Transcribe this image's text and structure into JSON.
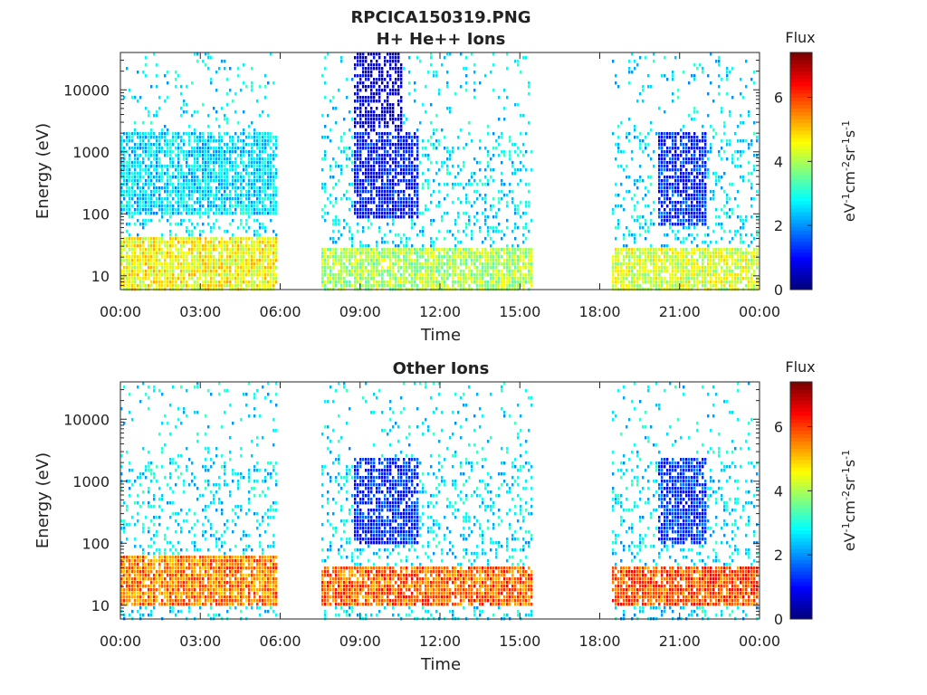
{
  "figure": {
    "title_line1": "RPCICA150319.PNG"
  },
  "chart_data": [
    {
      "type": "heatmap",
      "title": "H+ He++ Ions",
      "xlabel": "Time",
      "ylabel": "Energy (eV)",
      "y_scale": "log",
      "ylim": [
        6,
        40000
      ],
      "y_ticks": [
        "10",
        "100",
        "1000",
        "10000"
      ],
      "x_ticks": [
        "00:00",
        "03:00",
        "06:00",
        "09:00",
        "12:00",
        "15:00",
        "18:00",
        "21:00",
        "00:00"
      ],
      "colorbar": {
        "title": "Flux",
        "label": "eV-1cm-2sr-1s-1",
        "range": [
          0,
          7.4
        ],
        "ticks": [
          "0",
          "2",
          "4",
          "6"
        ]
      },
      "data_gaps_hours": [
        [
          5.9,
          7.5
        ],
        [
          15.5,
          18.5
        ]
      ],
      "data_intervals_hours": [
        [
          0.0,
          5.9
        ],
        [
          7.5,
          15.5
        ],
        [
          18.5,
          24.0
        ]
      ],
      "features": [
        {
          "time_hours": [
            0.0,
            5.9
          ],
          "energy_eV": [
            6,
            40
          ],
          "flux": 4.6
        },
        {
          "time_hours": [
            0.0,
            5.9
          ],
          "energy_eV": [
            100,
            2000
          ],
          "flux": 2.5
        },
        {
          "time_hours": [
            7.5,
            15.5
          ],
          "energy_eV": [
            6,
            30
          ],
          "flux": 4.0
        },
        {
          "time_hours": [
            8.8,
            11.2
          ],
          "energy_eV": [
            80,
            2000
          ],
          "flux": 1.0
        },
        {
          "time_hours": [
            8.8,
            10.6
          ],
          "energy_eV": [
            2000,
            40000
          ],
          "flux": 0.5
        },
        {
          "time_hours": [
            18.5,
            24.0
          ],
          "energy_eV": [
            6,
            30
          ],
          "flux": 4.3
        },
        {
          "time_hours": [
            20.2,
            22.0
          ],
          "energy_eV": [
            60,
            2000
          ],
          "flux": 1.2
        }
      ]
    },
    {
      "type": "heatmap",
      "title": "Other Ions",
      "xlabel": "Time",
      "ylabel": "Energy (eV)",
      "y_scale": "log",
      "ylim": [
        6,
        40000
      ],
      "y_ticks": [
        "10",
        "100",
        "1000",
        "10000"
      ],
      "x_ticks": [
        "00:00",
        "03:00",
        "06:00",
        "09:00",
        "12:00",
        "15:00",
        "18:00",
        "21:00",
        "00:00"
      ],
      "colorbar": {
        "title": "Flux",
        "label": "eV-1cm-2sr-1s-1",
        "range": [
          0,
          7.4
        ],
        "ticks": [
          "0",
          "2",
          "4",
          "6"
        ]
      },
      "data_gaps_hours": [
        [
          5.9,
          7.5
        ],
        [
          15.5,
          18.5
        ]
      ],
      "data_intervals_hours": [
        [
          0.0,
          5.9
        ],
        [
          7.5,
          15.5
        ],
        [
          18.5,
          24.0
        ]
      ],
      "features": [
        {
          "time_hours": [
            0.0,
            5.9
          ],
          "energy_eV": [
            10,
            60
          ],
          "flux": 5.6
        },
        {
          "time_hours": [
            7.5,
            15.5
          ],
          "energy_eV": [
            10,
            40
          ],
          "flux": 5.8
        },
        {
          "time_hours": [
            8.8,
            11.2
          ],
          "energy_eV": [
            100,
            2500
          ],
          "flux": 1.2
        },
        {
          "time_hours": [
            18.5,
            24.0
          ],
          "energy_eV": [
            10,
            40
          ],
          "flux": 5.9
        },
        {
          "time_hours": [
            20.2,
            22.0
          ],
          "energy_eV": [
            100,
            2500
          ],
          "flux": 1.3
        }
      ]
    }
  ]
}
